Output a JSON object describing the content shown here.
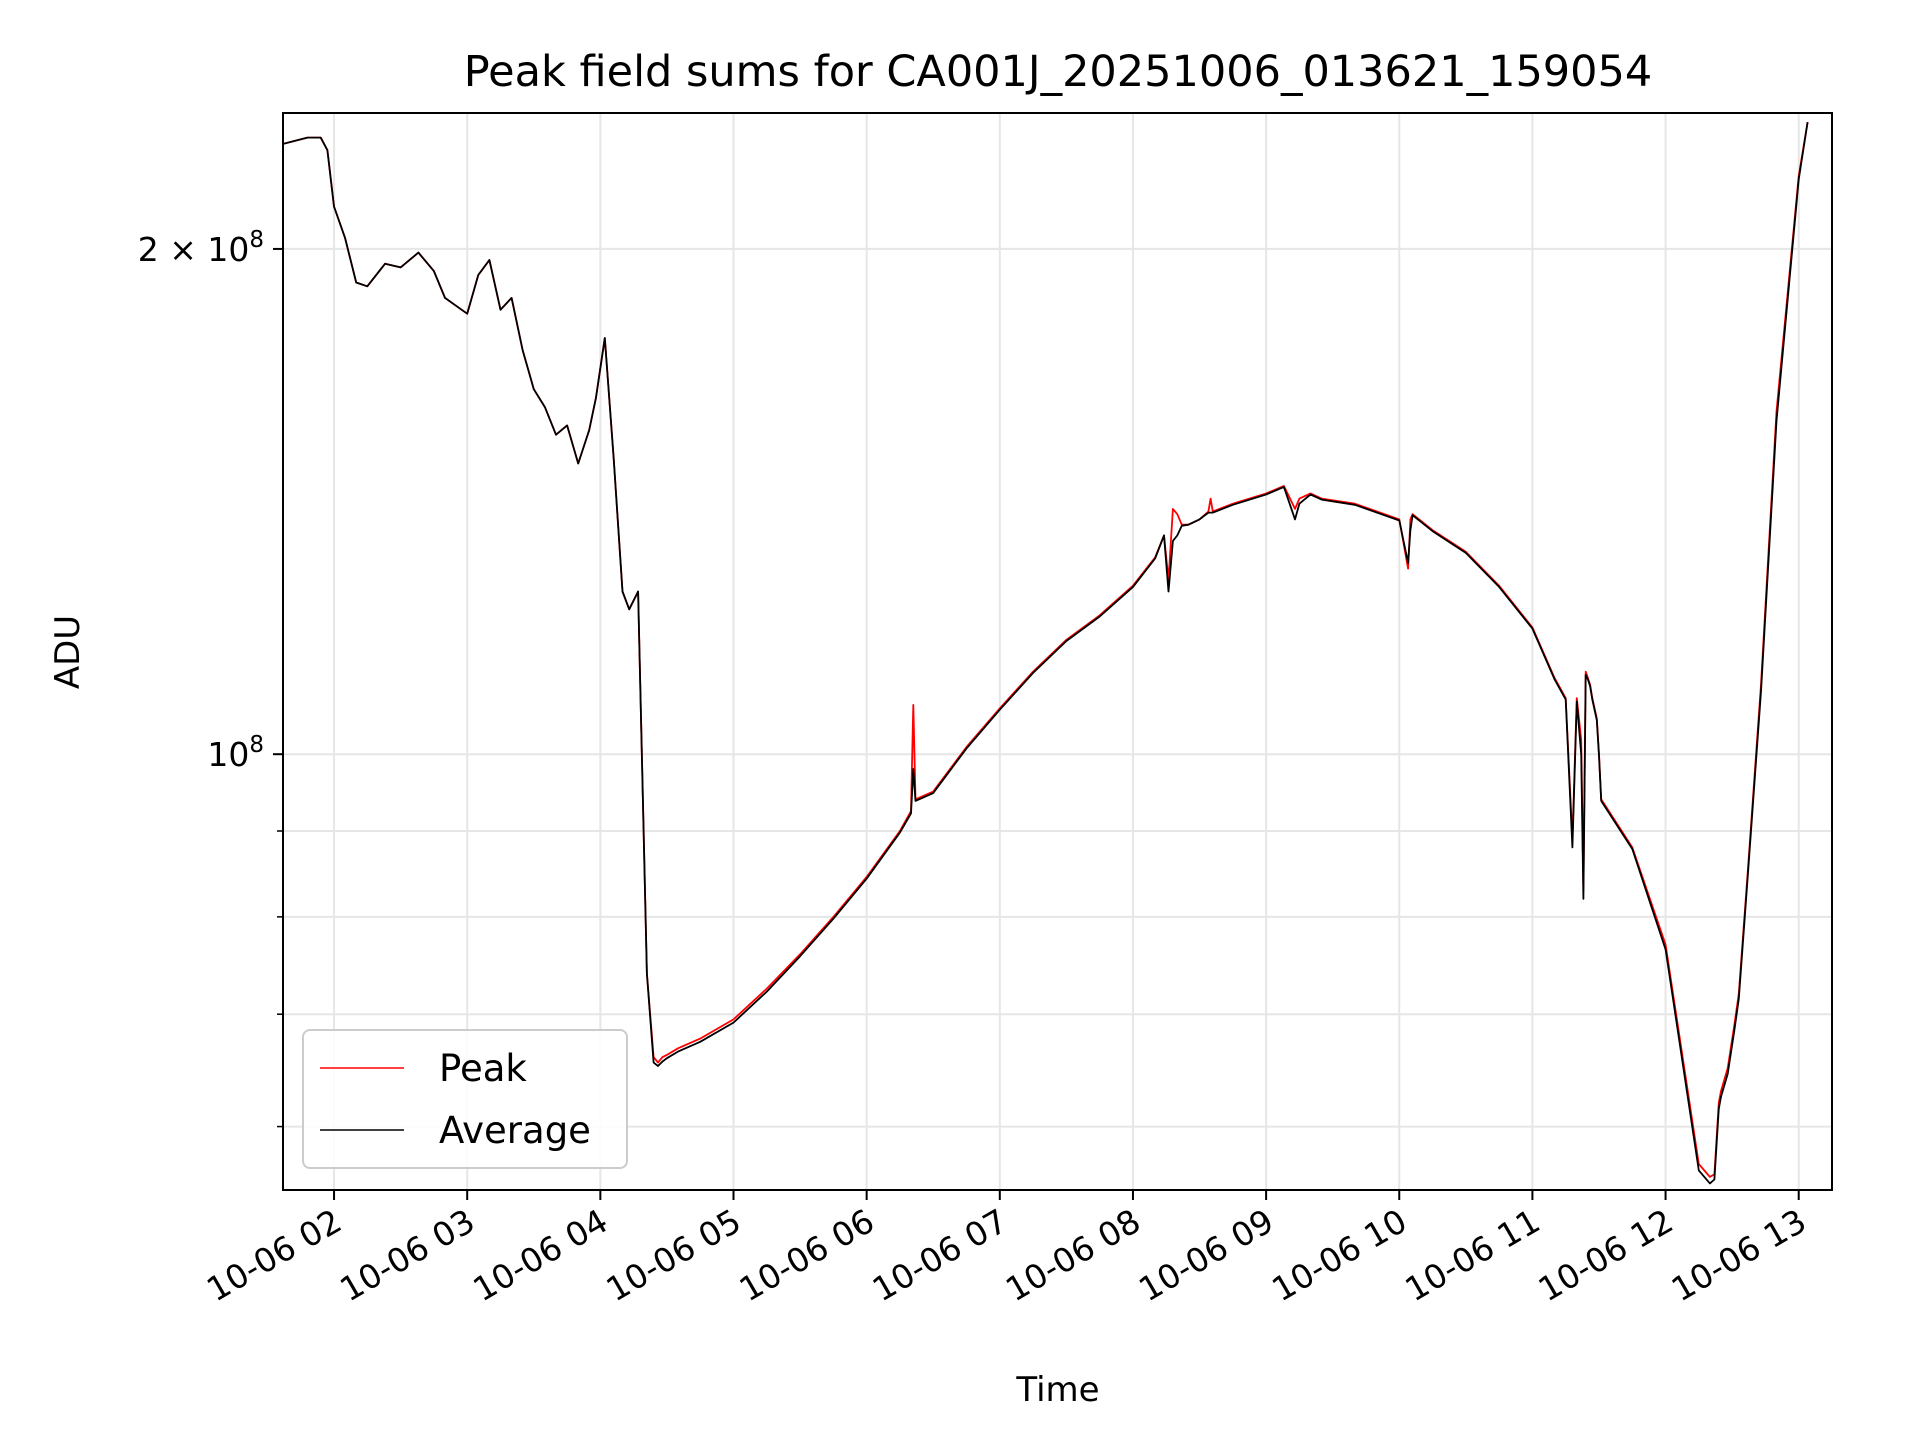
{
  "chart_data": {
    "type": "line",
    "title": "Peak field sums for CA001J_20251006_013621_159054",
    "xlabel": "Time",
    "ylabel": "ADU",
    "xlim": [
      "2025-10-06 01:37",
      "2025-10-06 13:15"
    ],
    "ylim": [
      55000000,
      241000000
    ],
    "y_scale": "log",
    "grid": true,
    "legend_position": "lower-left",
    "x_ticks": [
      "10-06 02",
      "10-06 03",
      "10-06 04",
      "10-06 05",
      "10-06 06",
      "10-06 07",
      "10-06 08",
      "10-06 09",
      "10-06 10",
      "10-06 11",
      "10-06 12",
      "10-06 13"
    ],
    "y_major_ticks": [
      {
        "value": 100000000,
        "mantissa": "",
        "base": "10",
        "exp": "8"
      },
      {
        "value": 200000000,
        "mantissa": "2 × ",
        "base": "10",
        "exp": "8"
      }
    ],
    "y_minor_ticks": [
      60000000,
      70000000,
      80000000,
      90000000
    ],
    "series": [
      {
        "name": "Peak",
        "color": "#ff0000",
        "x": [
          "2025-10-06 01:37",
          "2025-10-06 01:48",
          "2025-10-06 01:54",
          "2025-10-06 01:57",
          "2025-10-06 02:00",
          "2025-10-06 02:05",
          "2025-10-06 02:10",
          "2025-10-06 02:15",
          "2025-10-06 02:23",
          "2025-10-06 02:30",
          "2025-10-06 02:38",
          "2025-10-06 02:45",
          "2025-10-06 02:50",
          "2025-10-06 02:55",
          "2025-10-06 03:00",
          "2025-10-06 03:05",
          "2025-10-06 03:10",
          "2025-10-06 03:15",
          "2025-10-06 03:20",
          "2025-10-06 03:25",
          "2025-10-06 03:30",
          "2025-10-06 03:35",
          "2025-10-06 03:40",
          "2025-10-06 03:45",
          "2025-10-06 03:50",
          "2025-10-06 03:55",
          "2025-10-06 03:58",
          "2025-10-06 04:02",
          "2025-10-06 04:06",
          "2025-10-06 04:10",
          "2025-10-06 04:13",
          "2025-10-06 04:17",
          "2025-10-06 04:21",
          "2025-10-06 04:24",
          "2025-10-06 04:26",
          "2025-10-06 04:28",
          "2025-10-06 04:30",
          "2025-10-06 04:35",
          "2025-10-06 04:45",
          "2025-10-06 05:00",
          "2025-10-06 05:15",
          "2025-10-06 05:30",
          "2025-10-06 05:45",
          "2025-10-06 06:00",
          "2025-10-06 06:15",
          "2025-10-06 06:20",
          "2025-10-06 06:21",
          "2025-10-06 06:22",
          "2025-10-06 06:30",
          "2025-10-06 06:45",
          "2025-10-06 07:00",
          "2025-10-06 07:15",
          "2025-10-06 07:30",
          "2025-10-06 07:45",
          "2025-10-06 08:00",
          "2025-10-06 08:10",
          "2025-10-06 08:14",
          "2025-10-06 08:16",
          "2025-10-06 08:18",
          "2025-10-06 08:20",
          "2025-10-06 08:22",
          "2025-10-06 08:25",
          "2025-10-06 08:30",
          "2025-10-06 08:34",
          "2025-10-06 08:35",
          "2025-10-06 08:36",
          "2025-10-06 08:45",
          "2025-10-06 09:00",
          "2025-10-06 09:08",
          "2025-10-06 09:13",
          "2025-10-06 09:15",
          "2025-10-06 09:20",
          "2025-10-06 09:25",
          "2025-10-06 09:40",
          "2025-10-06 10:00",
          "2025-10-06 10:04",
          "2025-10-06 10:05",
          "2025-10-06 10:06",
          "2025-10-06 10:15",
          "2025-10-06 10:30",
          "2025-10-06 10:45",
          "2025-10-06 11:00",
          "2025-10-06 11:10",
          "2025-10-06 11:15",
          "2025-10-06 11:18",
          "2025-10-06 11:20",
          "2025-10-06 11:22",
          "2025-10-06 11:23",
          "2025-10-06 11:24",
          "2025-10-06 11:25",
          "2025-10-06 11:26",
          "2025-10-06 11:27",
          "2025-10-06 11:29",
          "2025-10-06 11:30",
          "2025-10-06 11:31",
          "2025-10-06 11:45",
          "2025-10-06 12:00",
          "2025-10-06 12:15",
          "2025-10-06 12:20",
          "2025-10-06 12:22",
          "2025-10-06 12:24",
          "2025-10-06 12:25",
          "2025-10-06 12:28",
          "2025-10-06 12:31",
          "2025-10-06 12:33",
          "2025-10-06 12:37",
          "2025-10-06 12:43",
          "2025-10-06 12:50",
          "2025-10-06 13:00",
          "2025-10-06 13:04"
        ],
        "y": [
          231000000,
          233000000,
          233000000,
          229000000,
          212000000,
          203000000,
          191000000,
          190000000,
          196000000,
          195000000,
          199000000,
          194000000,
          187000000,
          185000000,
          183000000,
          193000000,
          197000000,
          184000000,
          187000000,
          174000000,
          165000000,
          161000000,
          155000000,
          157000000,
          149000000,
          156000000,
          163000000,
          177000000,
          150000000,
          125000000,
          122000000,
          125000000,
          74000000,
          66000000,
          65500000,
          66000000,
          66200000,
          66800000,
          67700000,
          69500000,
          72500000,
          76000000,
          80000000,
          84500000,
          90000000,
          92500000,
          107000000,
          94000000,
          95000000,
          101000000,
          106500000,
          112000000,
          117000000,
          121000000,
          126000000,
          131000000,
          135000000,
          127000000,
          140000000,
          139000000,
          137000000,
          137000000,
          138000000,
          139500000,
          142000000,
          139500000,
          141000000,
          143000000,
          144500000,
          140000000,
          142000000,
          143000000,
          142000000,
          141000000,
          138000000,
          129000000,
          138000000,
          139000000,
          136000000,
          132000000,
          126000000,
          119000000,
          111000000,
          108000000,
          89000000,
          108000000,
          102000000,
          83000000,
          112000000,
          111000000,
          110000000,
          108000000,
          105000000,
          100000000,
          94000000,
          88000000,
          77000000,
          57000000,
          56000000,
          56200000,
          62000000,
          63000000,
          65000000,
          69000000,
          72000000,
          85000000,
          110000000,
          160000000,
          221000000,
          238000000
        ]
      },
      {
        "name": "Average",
        "color": "#000000",
        "x": [
          "2025-10-06 01:37",
          "2025-10-06 01:48",
          "2025-10-06 01:54",
          "2025-10-06 01:57",
          "2025-10-06 02:00",
          "2025-10-06 02:05",
          "2025-10-06 02:10",
          "2025-10-06 02:15",
          "2025-10-06 02:23",
          "2025-10-06 02:30",
          "2025-10-06 02:38",
          "2025-10-06 02:45",
          "2025-10-06 02:50",
          "2025-10-06 02:55",
          "2025-10-06 03:00",
          "2025-10-06 03:05",
          "2025-10-06 03:10",
          "2025-10-06 03:15",
          "2025-10-06 03:20",
          "2025-10-06 03:25",
          "2025-10-06 03:30",
          "2025-10-06 03:35",
          "2025-10-06 03:40",
          "2025-10-06 03:45",
          "2025-10-06 03:50",
          "2025-10-06 03:55",
          "2025-10-06 03:58",
          "2025-10-06 04:02",
          "2025-10-06 04:06",
          "2025-10-06 04:10",
          "2025-10-06 04:13",
          "2025-10-06 04:17",
          "2025-10-06 04:21",
          "2025-10-06 04:24",
          "2025-10-06 04:26",
          "2025-10-06 04:28",
          "2025-10-06 04:30",
          "2025-10-06 04:35",
          "2025-10-06 04:45",
          "2025-10-06 05:00",
          "2025-10-06 05:15",
          "2025-10-06 05:30",
          "2025-10-06 05:45",
          "2025-10-06 06:00",
          "2025-10-06 06:15",
          "2025-10-06 06:20",
          "2025-10-06 06:21",
          "2025-10-06 06:22",
          "2025-10-06 06:30",
          "2025-10-06 06:45",
          "2025-10-06 07:00",
          "2025-10-06 07:15",
          "2025-10-06 07:30",
          "2025-10-06 07:45",
          "2025-10-06 08:00",
          "2025-10-06 08:10",
          "2025-10-06 08:14",
          "2025-10-06 08:16",
          "2025-10-06 08:18",
          "2025-10-06 08:20",
          "2025-10-06 08:22",
          "2025-10-06 08:25",
          "2025-10-06 08:30",
          "2025-10-06 08:34",
          "2025-10-06 08:35",
          "2025-10-06 08:36",
          "2025-10-06 08:45",
          "2025-10-06 09:00",
          "2025-10-06 09:08",
          "2025-10-06 09:13",
          "2025-10-06 09:15",
          "2025-10-06 09:20",
          "2025-10-06 09:25",
          "2025-10-06 09:40",
          "2025-10-06 10:00",
          "2025-10-06 10:04",
          "2025-10-06 10:05",
          "2025-10-06 10:06",
          "2025-10-06 10:15",
          "2025-10-06 10:30",
          "2025-10-06 10:45",
          "2025-10-06 11:00",
          "2025-10-06 11:10",
          "2025-10-06 11:15",
          "2025-10-06 11:18",
          "2025-10-06 11:20",
          "2025-10-06 11:22",
          "2025-10-06 11:23",
          "2025-10-06 11:24",
          "2025-10-06 11:25",
          "2025-10-06 11:26",
          "2025-10-06 11:27",
          "2025-10-06 11:29",
          "2025-10-06 11:30",
          "2025-10-06 11:31",
          "2025-10-06 11:45",
          "2025-10-06 12:00",
          "2025-10-06 12:15",
          "2025-10-06 12:20",
          "2025-10-06 12:22",
          "2025-10-06 12:24",
          "2025-10-06 12:25",
          "2025-10-06 12:28",
          "2025-10-06 12:31",
          "2025-10-06 12:33",
          "2025-10-06 12:37",
          "2025-10-06 12:43",
          "2025-10-06 12:50",
          "2025-10-06 13:00",
          "2025-10-06 13:04"
        ],
        "y": [
          231000000,
          233000000,
          233000000,
          229000000,
          212000000,
          203000000,
          191000000,
          190000000,
          196000000,
          195000000,
          199000000,
          194000000,
          187000000,
          185000000,
          183000000,
          193000000,
          197000000,
          184000000,
          187000000,
          174000000,
          165000000,
          161000000,
          155000000,
          157000000,
          149000000,
          156000000,
          163000000,
          177000000,
          150000000,
          125000000,
          122000000,
          125000000,
          74000000,
          65500000,
          65200000,
          65600000,
          65900000,
          66500000,
          67400000,
          69200000,
          72200000,
          75800000,
          79800000,
          84300000,
          89800000,
          92200000,
          98000000,
          93800000,
          94800000,
          100800000,
          106300000,
          111800000,
          116800000,
          120800000,
          125800000,
          130800000,
          135000000,
          125000000,
          134000000,
          135000000,
          136800000,
          137000000,
          138000000,
          139300000,
          139300000,
          139300000,
          140800000,
          142800000,
          144300000,
          138000000,
          141000000,
          142800000,
          141800000,
          140800000,
          137800000,
          130000000,
          136000000,
          138800000,
          135800000,
          131800000,
          125800000,
          118800000,
          110800000,
          107800000,
          88000000,
          107500000,
          100000000,
          82000000,
          111500000,
          110800000,
          109800000,
          107800000,
          104800000,
          99800000,
          93800000,
          87800000,
          76500000,
          56500000,
          55500000,
          55800000,
          61500000,
          62500000,
          64500000,
          68500000,
          71500000,
          84500000,
          109000000,
          158000000,
          220000000,
          238000000
        ]
      }
    ]
  }
}
